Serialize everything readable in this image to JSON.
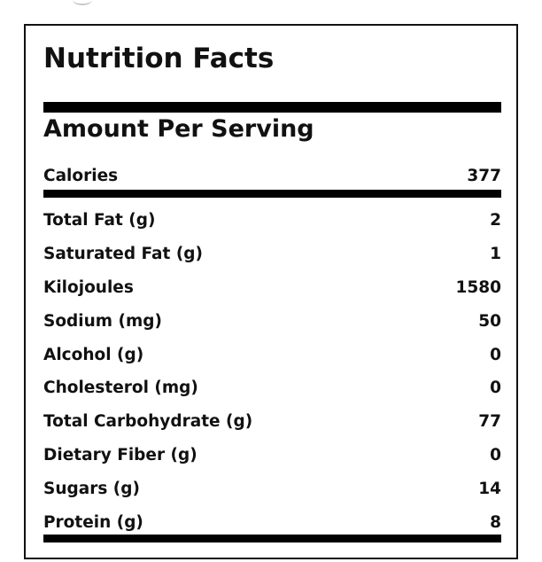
{
  "nutrition": {
    "title": "Nutrition Facts",
    "amount_heading": "Amount Per Serving",
    "calories": {
      "label": "Calories",
      "value": "377"
    },
    "rows": [
      {
        "label": "Total Fat (g)",
        "value": "2"
      },
      {
        "label": "Saturated Fat (g)",
        "value": "1"
      },
      {
        "label": "Kilojoules",
        "value": "1580"
      },
      {
        "label": "Sodium (mg)",
        "value": "50"
      },
      {
        "label": "Alcohol (g)",
        "value": "0"
      },
      {
        "label": "Cholesterol (mg)",
        "value": "0"
      },
      {
        "label": "Total Carbohydrate (g)",
        "value": "77"
      },
      {
        "label": "Dietary Fiber (g)",
        "value": "0"
      },
      {
        "label": "Sugars (g)",
        "value": "14"
      },
      {
        "label": "Protein (g)",
        "value": "8"
      }
    ]
  }
}
